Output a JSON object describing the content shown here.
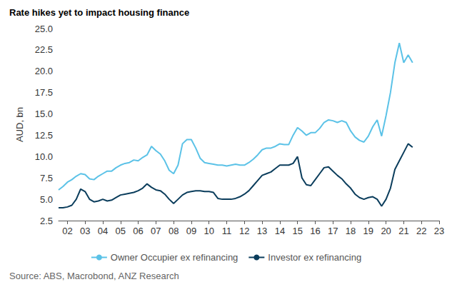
{
  "chart_data": {
    "type": "line",
    "title": "Rate hikes yet to impact housing finance",
    "y_label": "AUD, bn",
    "source": "Source: ABS, Macrobond, ANZ Research",
    "categories": [
      null,
      null,
      "02",
      null,
      null,
      null,
      "03",
      null,
      null,
      null,
      "04",
      null,
      null,
      null,
      "05",
      null,
      null,
      null,
      "06",
      null,
      null,
      null,
      "07",
      null,
      null,
      null,
      "08",
      null,
      null,
      null,
      "09",
      null,
      null,
      null,
      "10",
      null,
      null,
      null,
      "11",
      null,
      null,
      null,
      "12",
      null,
      null,
      null,
      "13",
      null,
      null,
      null,
      "14",
      null,
      null,
      null,
      "15",
      null,
      null,
      null,
      "16",
      null,
      null,
      null,
      "17",
      null,
      null,
      null,
      "18",
      null,
      null,
      null,
      "19",
      null,
      null,
      null,
      "20",
      null,
      null,
      null,
      "21",
      null,
      null,
      null,
      "22",
      null,
      null,
      null,
      "23"
    ],
    "series": [
      {
        "name": "Owner Occupier ex refinancing",
        "color": "#5bc2e7",
        "values": [
          6.1,
          6.5,
          7.0,
          7.3,
          7.7,
          8.0,
          7.9,
          7.4,
          7.3,
          7.7,
          8.0,
          8.3,
          8.3,
          8.7,
          9.0,
          9.2,
          9.3,
          9.6,
          9.5,
          9.9,
          10.2,
          11.2,
          10.7,
          10.3,
          9.5,
          8.4,
          8.0,
          9.0,
          11.5,
          12.0,
          12.0,
          11.0,
          9.8,
          9.3,
          9.2,
          9.1,
          9.0,
          9.0,
          8.9,
          9.0,
          9.1,
          9.0,
          9.0,
          9.3,
          9.7,
          10.2,
          10.8,
          11.0,
          11.0,
          11.2,
          11.5,
          11.4,
          11.4,
          12.5,
          13.4,
          13.0,
          12.5,
          12.8,
          12.8,
          13.3,
          14.0,
          14.3,
          14.2,
          14.0,
          14.2,
          14.0,
          13.0,
          12.3,
          11.9,
          11.7,
          12.4,
          13.5,
          14.3,
          12.4,
          14.8,
          17.5,
          21.0,
          23.3,
          21.0,
          21.9,
          21.0,
          null,
          null,
          null,
          null,
          null,
          null
        ]
      },
      {
        "name": "Investor ex refinancing",
        "color": "#0b3d5c",
        "values": [
          4.0,
          4.0,
          4.1,
          4.3,
          5.0,
          6.2,
          5.9,
          5.0,
          4.7,
          4.8,
          5.0,
          4.8,
          4.9,
          5.2,
          5.5,
          5.6,
          5.7,
          5.8,
          6.0,
          6.3,
          6.8,
          6.4,
          6.1,
          6.0,
          5.6,
          5.0,
          4.5,
          5.0,
          5.5,
          5.8,
          5.9,
          6.0,
          6.0,
          5.9,
          5.9,
          5.8,
          5.1,
          5.0,
          5.0,
          5.0,
          5.1,
          5.3,
          5.6,
          6.0,
          6.6,
          7.2,
          7.8,
          8.0,
          8.2,
          8.6,
          9.0,
          9.0,
          9.0,
          9.2,
          10.0,
          7.5,
          6.7,
          6.6,
          7.3,
          8.0,
          8.7,
          8.8,
          8.3,
          7.8,
          7.4,
          6.8,
          6.3,
          5.6,
          5.2,
          5.0,
          5.2,
          5.3,
          5.0,
          4.2,
          5.0,
          6.3,
          8.5,
          9.5,
          10.5,
          11.5,
          11.1,
          null,
          null,
          null,
          null,
          null,
          null
        ]
      }
    ],
    "ylim": [
      2.5,
      25
    ],
    "yticks": [
      2.5,
      {
        "value": 5,
        "label": "5.0"
      },
      7.5,
      {
        "value": 10,
        "label": "10.0"
      },
      12.5,
      {
        "value": 15,
        "label": "15.0"
      },
      17.5,
      {
        "value": 20,
        "label": "20.0"
      },
      22.5,
      {
        "value": 25,
        "label": "25.0"
      }
    ],
    "grid": false,
    "legend": "bottom"
  }
}
